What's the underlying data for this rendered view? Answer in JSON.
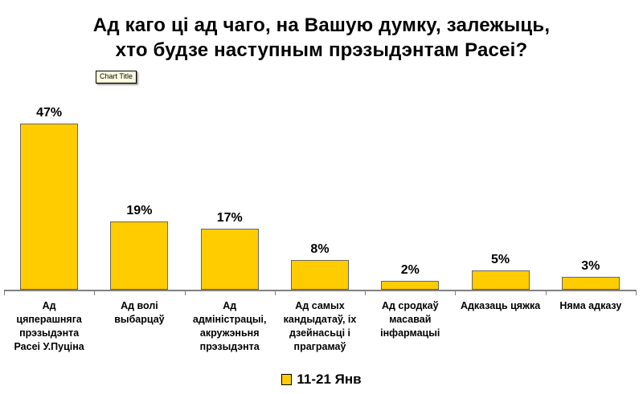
{
  "page": {
    "background": "#FFFFFF"
  },
  "header": {
    "title_line1": "Ад каго ці ад чаго, на Вашую думку, залежыць,",
    "title_line2": "хто будзе наступным прэзыдэнтам Расеі?",
    "tooltip_label": "Chart Title"
  },
  "chart_data": {
    "type": "bar",
    "title": "Ад каго ці ад чаго, на Вашую думку, залежыць, хто будзе наступным прэзыдэнтам Расеі?",
    "categories": [
      "Ад цяперашняга прэзыдэнта Расеі У.Пуціна",
      "Ад волі выбарцаў",
      "Ад адміністрацыі, акружэньня прэзыдэнта",
      "Ад самых кандыдатаў, іх дзейнасьці і праграмаў",
      "Ад сродкаў масавай інфармацыі",
      "Адказаць цяжка",
      "Няма адказу"
    ],
    "tick_labels": [
      "Ад\nцяперашняга\nпрэзыдэнта\nРасеі У.Пуціна",
      "Ад волі\nвыбарцаў",
      "Ад\nадміністрацыі,\nакружэньня\nпрэзыдэнта",
      "Ад самых\nкандыдатаў, іх\nдзейнасьці і\nпраграмаў",
      "Ад сродкаў\nмасавай\nінфармацыі",
      "Адказаць цяжка",
      "Няма адказу"
    ],
    "series": [
      {
        "name": "11-21 Янв",
        "values": [
          47,
          19,
          17,
          8,
          2,
          5,
          3
        ]
      }
    ],
    "value_labels": [
      "47%",
      "19%",
      "17%",
      "8%",
      "2%",
      "5%",
      "3%"
    ],
    "value_suffix": "%",
    "ylim": [
      0,
      50
    ],
    "grid": false,
    "data_labels": true,
    "legend_position": "bottom",
    "bar_color": "#FFCC00",
    "bar_border_color": "#666666",
    "axis_color": "#808080",
    "text_color": "#000000"
  },
  "legend": {
    "swatch_color": "#FFCC00",
    "label": "11-21 Янв"
  }
}
